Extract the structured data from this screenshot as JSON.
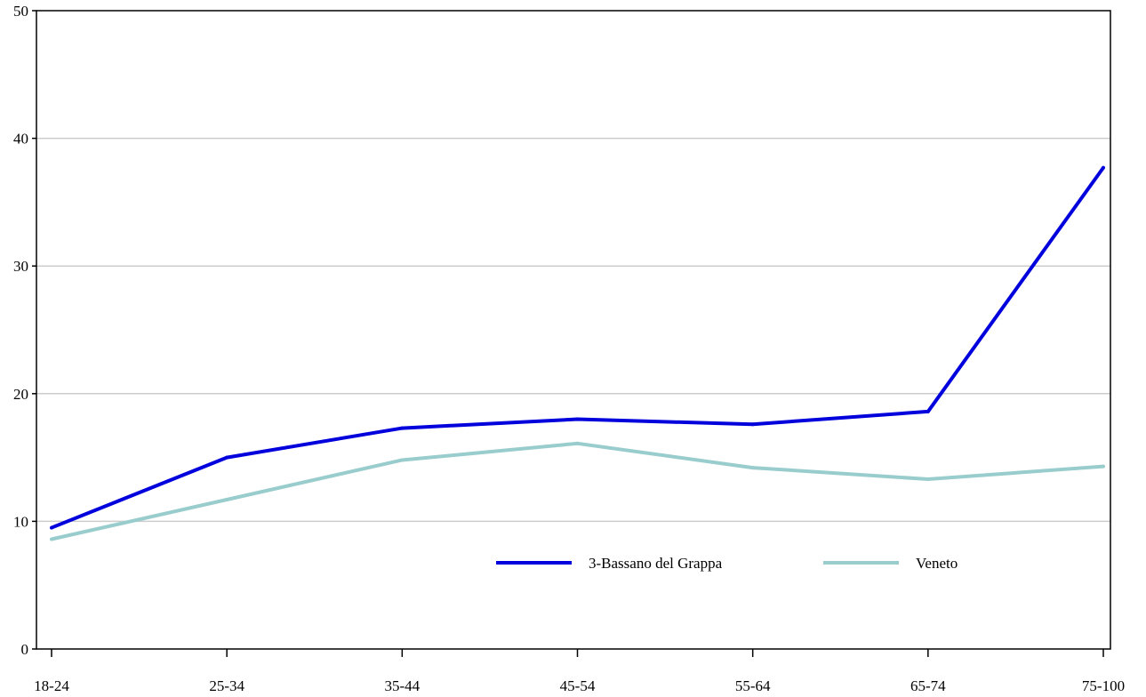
{
  "chart_data": {
    "type": "line",
    "categories": [
      "18-24",
      "25-34",
      "35-44",
      "45-54",
      "55-64",
      "65-74",
      "75-100"
    ],
    "series": [
      {
        "name": "3-Bassano del Grappa",
        "color": "#0000dd",
        "values": [
          9.5,
          15.0,
          17.3,
          18.0,
          17.6,
          18.6,
          37.7
        ]
      },
      {
        "name": "Veneto",
        "color": "#99cccc",
        "values": [
          8.6,
          11.7,
          14.8,
          16.1,
          14.2,
          13.3,
          14.3
        ]
      }
    ],
    "ylim": [
      0,
      50
    ],
    "yticks": [
      "0",
      "10",
      "20",
      "30",
      "40",
      "50"
    ],
    "grid": true,
    "legend_position": "bottom-center",
    "title": "",
    "xlabel": "",
    "ylabel": ""
  }
}
